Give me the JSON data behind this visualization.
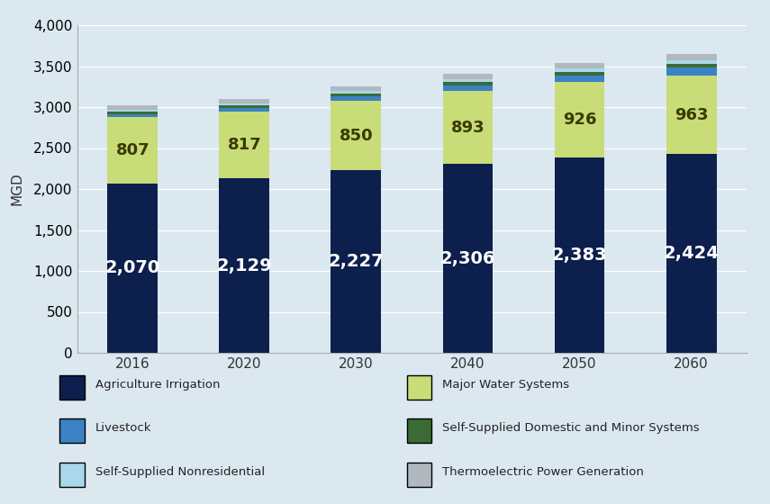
{
  "years": [
    "2016",
    "2020",
    "2030",
    "2040",
    "2050",
    "2060"
  ],
  "segments": {
    "Agriculture Irrigation": [
      2070,
      2129,
      2227,
      2306,
      2383,
      2424
    ],
    "Major Water Systems": [
      807,
      817,
      850,
      893,
      926,
      963
    ],
    "Livestock": [
      40,
      43,
      52,
      62,
      76,
      92
    ],
    "Self-Supplied Domestic and Minor Systems": [
      28,
      30,
      36,
      43,
      49,
      53
    ],
    "Self-Supplied Nonresidential": [
      22,
      25,
      29,
      33,
      37,
      41
    ],
    "Thermoelectric Power Generation": [
      50,
      52,
      58,
      65,
      70,
      75
    ]
  },
  "colors": {
    "Agriculture Irrigation": "#0d1f4c",
    "Major Water Systems": "#c8dc78",
    "Livestock": "#3b82c4",
    "Self-Supplied Domestic and Minor Systems": "#3a6b35",
    "Self-Supplied Nonresidential": "#a8d8ea",
    "Thermoelectric Power Generation": "#b0b8c0"
  },
  "bar_labels_agri": [
    "2,070",
    "2,129",
    "2,227",
    "2,306",
    "2,383",
    "2,424"
  ],
  "bar_labels_water": [
    "807",
    "817",
    "850",
    "893",
    "926",
    "963"
  ],
  "ylabel": "MGD",
  "ylim": [
    0,
    4000
  ],
  "yticks": [
    0,
    500,
    1000,
    1500,
    2000,
    2500,
    3000,
    3500,
    4000
  ],
  "background_color": "#dce8f0",
  "bar_width": 0.45,
  "axis_fontsize": 11,
  "label_fontsize_agri": 14,
  "label_fontsize_water": 13,
  "legend_col1": [
    "Agriculture Irrigation",
    "Livestock",
    "Self-Supplied Nonresidential"
  ],
  "legend_col2": [
    "Major Water Systems",
    "Self-Supplied Domestic and Minor Systems",
    "Thermoelectric Power Generation"
  ]
}
